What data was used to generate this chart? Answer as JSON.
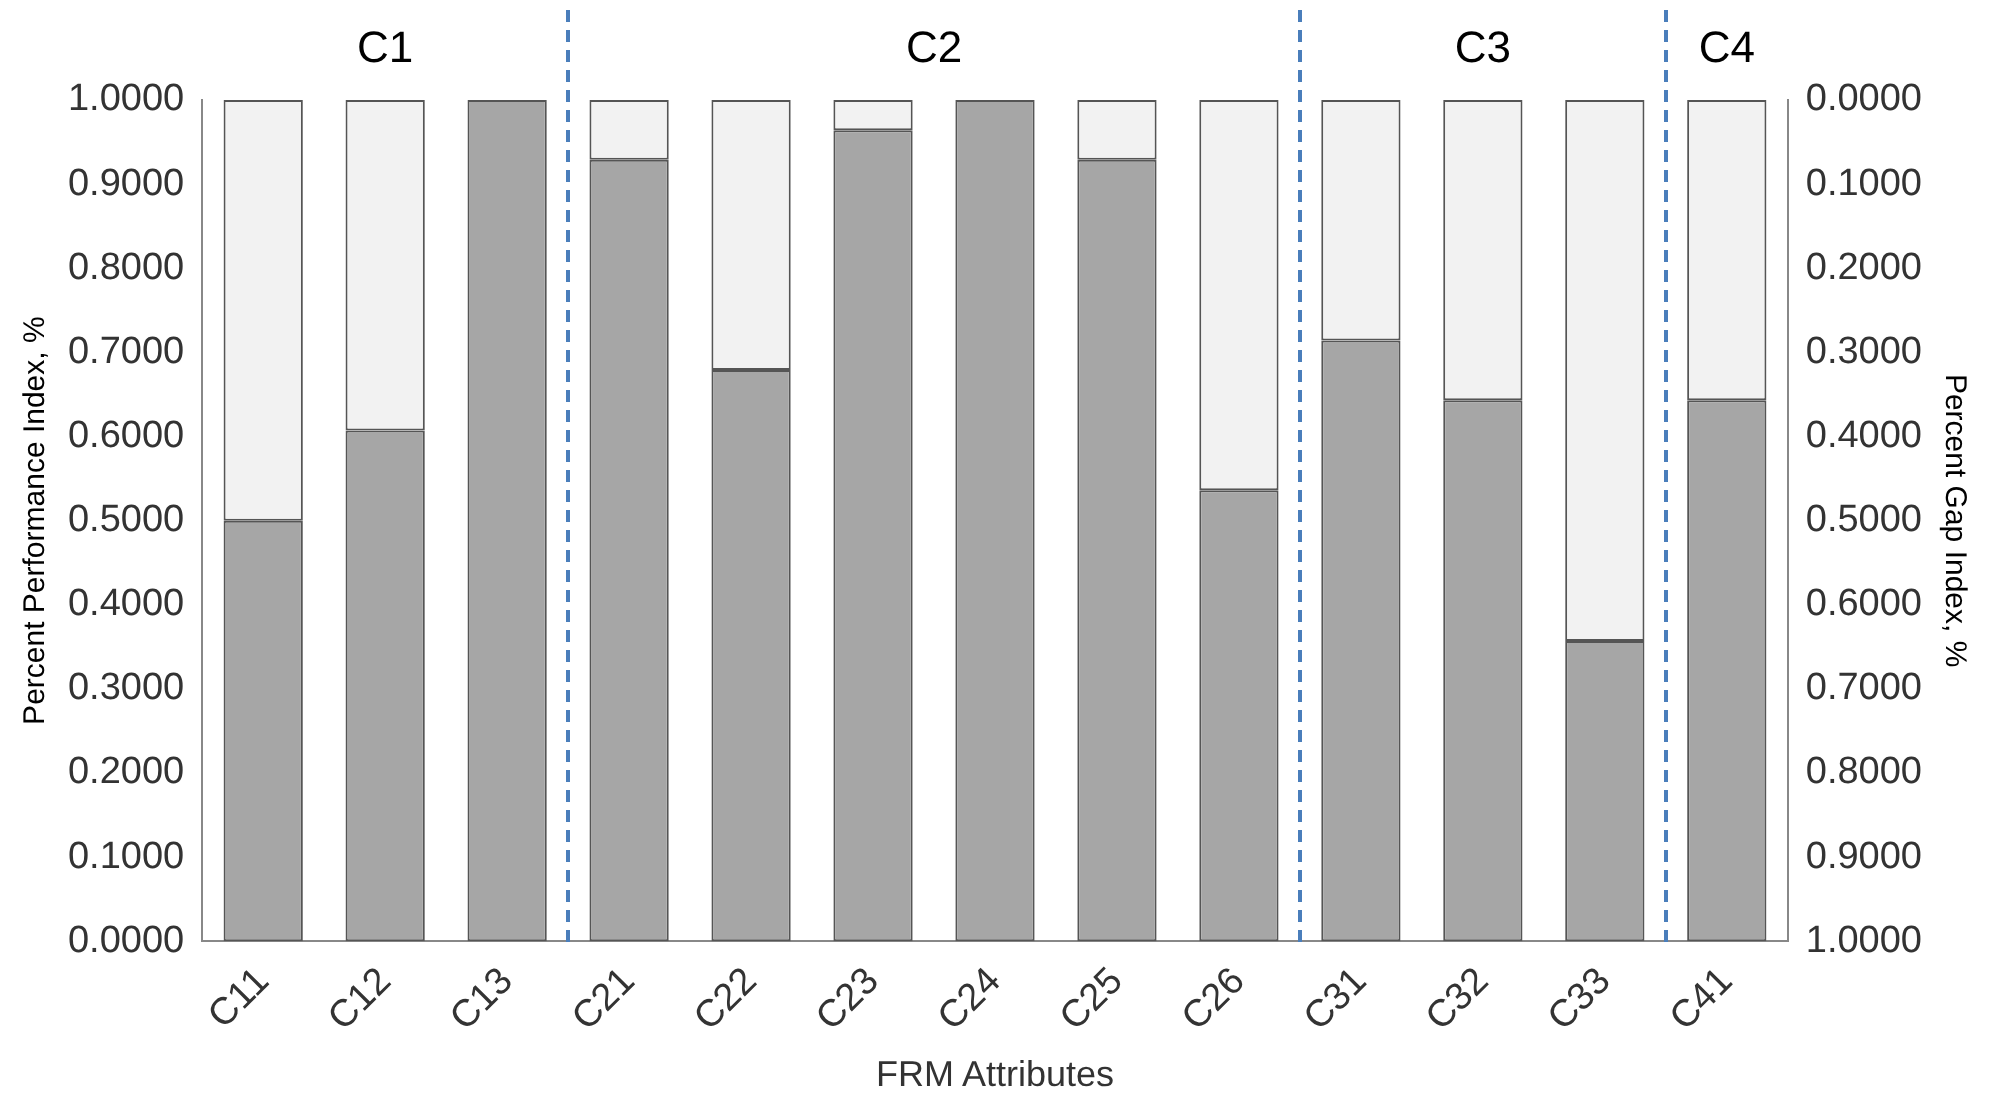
{
  "chart_data": {
    "type": "bar",
    "stacked": true,
    "xlabel": "FRM Attributes",
    "ylabel": "Percent Performance Index, %",
    "y2label": "Percent Gap Index, %",
    "categories": [
      "C11",
      "C12",
      "C13",
      "C21",
      "C22",
      "C23",
      "C24",
      "C25",
      "C26",
      "C31",
      "C32",
      "C33",
      "C41"
    ],
    "series": [
      {
        "color": "#a6a6a6",
        "values": [
          0.5,
          0.607,
          1.0,
          0.929,
          0.679,
          0.964,
          1.0,
          0.929,
          0.536,
          0.714,
          0.643,
          0.357,
          0.643
        ]
      },
      {
        "color": "#f2f2f2",
        "values": [
          0.5,
          0.393,
          0.0,
          0.071,
          0.321,
          0.036,
          0.0,
          0.071,
          0.464,
          0.286,
          0.357,
          0.643,
          0.357
        ]
      }
    ],
    "ylim": [
      0,
      1
    ],
    "yticks": [
      {
        "value": 0,
        "label": "0.0000"
      },
      {
        "value": 0.1,
        "label": "0.1000"
      },
      {
        "value": 0.2,
        "label": "0.2000"
      },
      {
        "value": 0.3,
        "label": "0.3000"
      },
      {
        "value": 0.4,
        "label": "0.4000"
      },
      {
        "value": 0.5,
        "label": "0.5000"
      },
      {
        "value": 0.6,
        "label": "0.6000"
      },
      {
        "value": 0.7,
        "label": "0.7000"
      },
      {
        "value": 0.8,
        "label": "0.8000"
      },
      {
        "value": 0.9,
        "label": "0.9000"
      },
      {
        "value": 1,
        "label": "1.0000"
      }
    ],
    "y2lim": [
      1,
      0
    ],
    "y2ticks": [
      {
        "value": 0,
        "label": "0.0000"
      },
      {
        "value": 0.1,
        "label": "0.1000"
      },
      {
        "value": 0.2,
        "label": "0.2000"
      },
      {
        "value": 0.3,
        "label": "0.3000"
      },
      {
        "value": 0.4,
        "label": "0.4000"
      },
      {
        "value": 0.5,
        "label": "0.5000"
      },
      {
        "value": 0.6,
        "label": "0.6000"
      },
      {
        "value": 0.7,
        "label": "0.7000"
      },
      {
        "value": 0.8,
        "label": "0.8000"
      },
      {
        "value": 0.9,
        "label": "0.9000"
      },
      {
        "value": 1,
        "label": "1.0000"
      }
    ],
    "annotations": [
      "C1",
      "C2",
      "C3",
      "C4"
    ],
    "grid": false,
    "legend": false
  }
}
